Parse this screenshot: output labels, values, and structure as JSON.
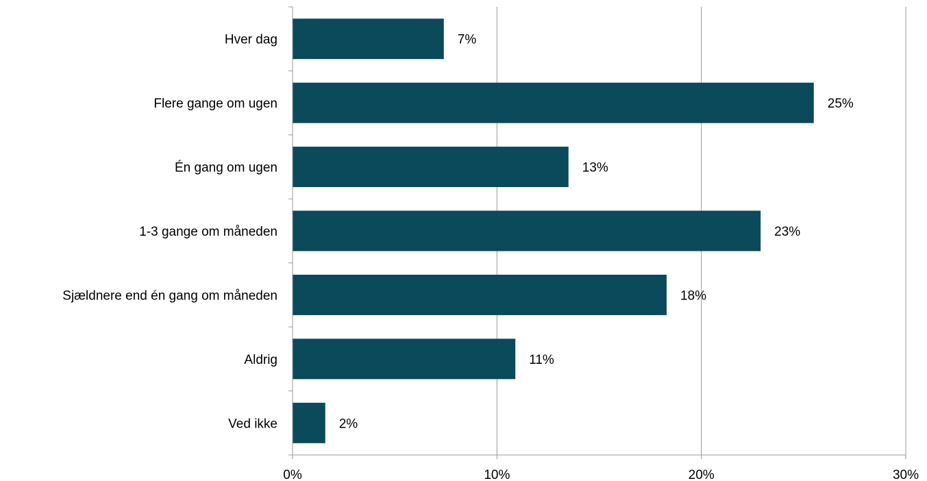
{
  "chart_data": {
    "type": "bar",
    "orientation": "horizontal",
    "categories": [
      "Hver dag",
      "Flere gange om ugen",
      "Én gang om ugen",
      "1-3 gange om måneden",
      "Sjældnere end én gang om måneden",
      "Aldrig",
      "Ved ikke"
    ],
    "values": [
      7.4,
      25.5,
      13.5,
      22.9,
      18.3,
      10.9,
      1.6
    ],
    "value_labels": [
      "7%",
      "25%",
      "13%",
      "23%",
      "18%",
      "11%",
      "2%"
    ],
    "xlim": [
      0,
      30
    ],
    "x_ticks": [
      0,
      10,
      20,
      30
    ],
    "x_tick_labels": [
      "0%",
      "10%",
      "20%",
      "30%"
    ],
    "grid": "vertical",
    "legend": "none",
    "bar_color": "#0a4a5a",
    "grid_color": "#9a9a9a"
  }
}
